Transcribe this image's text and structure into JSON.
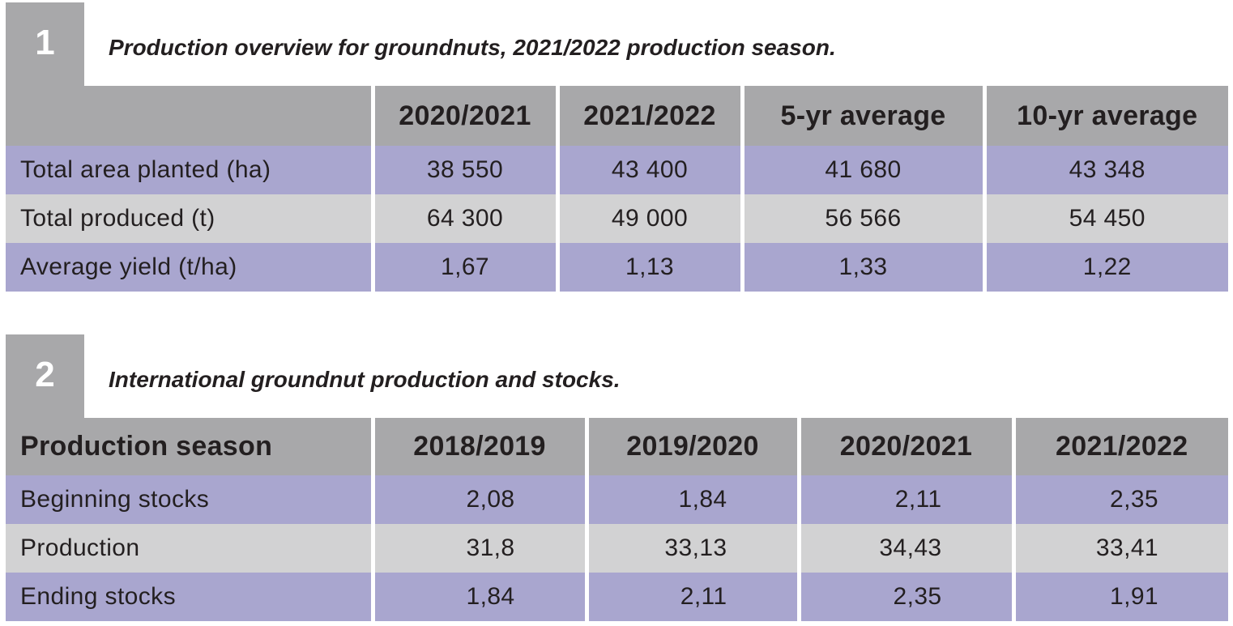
{
  "table1": {
    "number": "1",
    "caption": "Production overview for groundnuts, 2021/2022 production season.",
    "columns": [
      "",
      "2020/2021",
      "2021/2022",
      "5-yr average",
      "10-yr average"
    ],
    "rows": [
      {
        "label": "Total area planted (ha)",
        "values": [
          "38 550",
          "43 400",
          "41 680",
          "43 348"
        ]
      },
      {
        "label": "Total produced (t)",
        "values": [
          "64 300",
          "49 000",
          "56 566",
          "54 450"
        ]
      },
      {
        "label": "Average yield (t/ha)",
        "values": [
          "1,67",
          "1,13",
          "1,33",
          "1,22"
        ]
      }
    ]
  },
  "table2": {
    "number": "2",
    "caption": "International groundnut production and stocks.",
    "columns": [
      "Production season",
      "2018/2019",
      "2019/2020",
      "2020/2021",
      "2021/2022"
    ],
    "rows": [
      {
        "label": "Beginning stocks",
        "values": [
          "2,08",
          "1,84",
          "2,11",
          "2,35"
        ]
      },
      {
        "label": "Production",
        "values": [
          "31,8",
          "33,13",
          "34,43",
          "33,41"
        ]
      },
      {
        "label": "Ending stocks",
        "values": [
          "1,84",
          "2,11",
          "2,35",
          "1,91"
        ]
      }
    ]
  },
  "colors": {
    "header_grey": "#a8a8aa",
    "row_purple": "#a9a6cf",
    "row_grey": "#d2d2d3"
  }
}
